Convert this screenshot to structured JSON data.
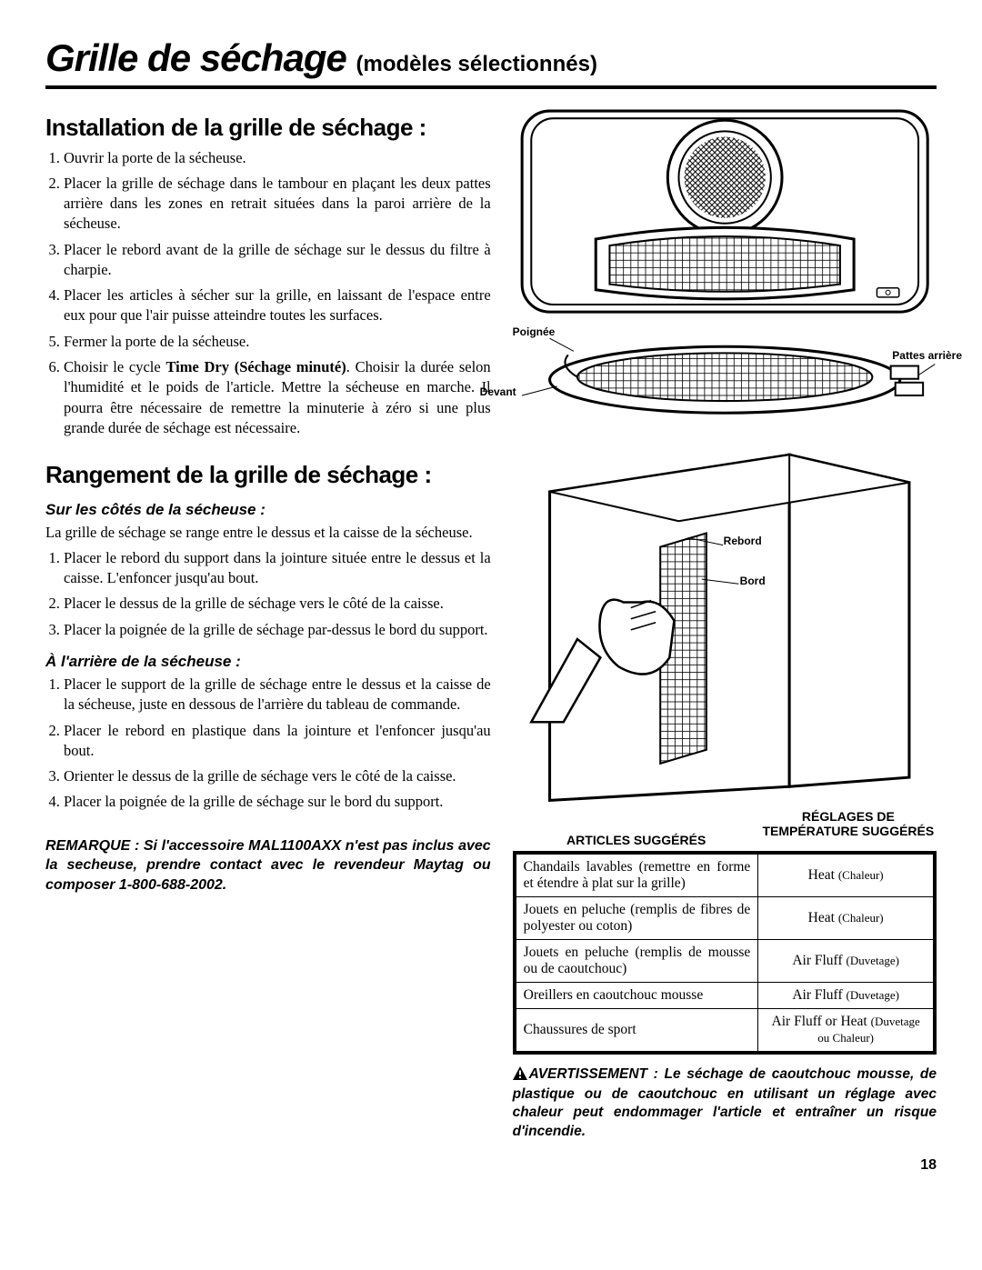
{
  "title_main": "Grille de séchage",
  "title_sub": "(modèles sélectionnés)",
  "install_h": "Installation de la grille de séchage :",
  "install_steps": [
    "Ouvrir la porte de la sécheuse.",
    "Placer la grille de séchage dans le tambour en plaçant les deux pattes arrière dans les zones en retrait situées dans la paroi arrière de la sécheuse.",
    "Placer le rebord avant de la grille de séchage sur le dessus du filtre à charpie.",
    "Placer les articles à sécher sur la grille, en laissant de l'espace entre eux pour que l'air puisse atteindre toutes les surfaces.",
    "Fermer la porte de la sécheuse.",
    "Choisir le cycle Time Dry (Séchage minuté). Choisir la durée selon l'humidité et le poids de l'article. Mettre la sécheuse en marche. Il pourra être nécessaire de remettre la minuterie à zéro si une plus grande durée de séchage est nécessaire."
  ],
  "step6_bold": "Time Dry (Séchage minuté)",
  "storage_h": "Rangement de la grille de séchage :",
  "side_h": "Sur les côtés de la sécheuse :",
  "side_intro": "La grille de séchage se range entre le dessus et la caisse de la sécheuse.",
  "side_steps": [
    "Placer le rebord du support dans la jointure située entre le dessus et la caisse. L'enfoncer jusqu'au bout.",
    "Placer le dessus de la grille de séchage vers le côté de la caisse.",
    "Placer la poignée de la grille de séchage par-dessus le bord du support."
  ],
  "back_h": "À l'arrière de la sécheuse :",
  "back_steps": [
    "Placer le support de la grille de séchage entre le dessus et la caisse de la sécheuse, juste en dessous de l'arrière du tableau de commande.",
    "Placer le rebord en plastique dans la jointure et l'enfoncer jusqu'au bout.",
    "Orienter le dessus de la grille de séchage vers le côté de la caisse.",
    "Placer la poignée de la grille de séchage sur le bord du support."
  ],
  "remark": "REMARQUE : Si l'accessoire MAL1100AXX n'est pas inclus avec la secheuse, prendre contact avec le revendeur Maytag ou composer 1-800-688-2002.",
  "diagram_labels": {
    "poignee": "Poignée",
    "devant": "Devant",
    "pattes": "Pattes arrière",
    "rebord": "Rebord",
    "bord": "Bord"
  },
  "table_header": {
    "col1": "ARTICLES SUGGÉRÉS",
    "col2": "RÉGLAGES DE TEMPÉRATURE SUGGÉRÉS"
  },
  "table_rows": [
    {
      "item": "Chandails lavables (remettre en forme et étendre à plat sur la grille)",
      "setting": "Heat",
      "setting_sub": "(Chaleur)"
    },
    {
      "item": "Jouets en peluche (remplis de fibres de polyester ou coton)",
      "setting": "Heat",
      "setting_sub": "(Chaleur)"
    },
    {
      "item": "Jouets en peluche (remplis de mousse ou de caoutchouc)",
      "setting": "Air Fluff",
      "setting_sub": "(Duvetage)"
    },
    {
      "item": "Oreillers en caoutchouc mousse",
      "setting": "Air Fluff",
      "setting_sub": "(Duvetage)"
    },
    {
      "item": "Chaussures de sport",
      "setting": "Air Fluff or Heat",
      "setting_sub": "(Duvetage ou Chaleur)"
    }
  ],
  "warning_label": "AVERTISSEMENT",
  "warning_body": ": Le séchage de caoutchouc mousse, de plastique ou de caoutchouc en utilisant un réglage avec chaleur peut endommager l'article et entraîner un risque d'incendie.",
  "page_number": "18"
}
